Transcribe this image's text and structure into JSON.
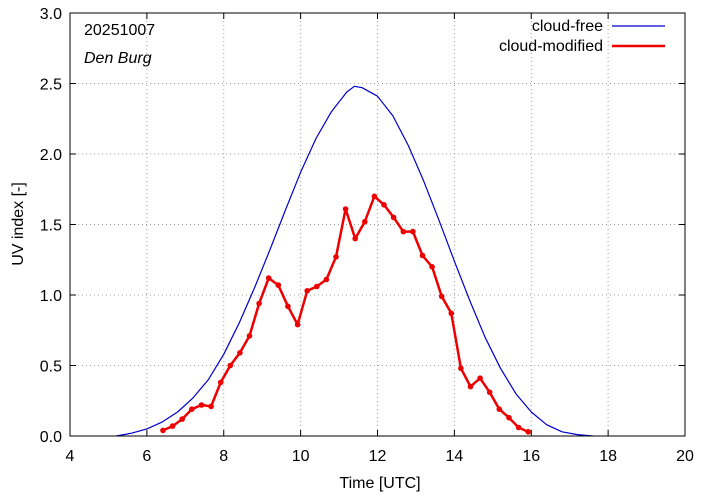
{
  "chart_data": {
    "type": "line",
    "title": "20251007",
    "subtitle": "Den Burg",
    "xlabel": "Time  [UTC]",
    "ylabel": "UV index  [-]",
    "xlim": [
      4,
      20
    ],
    "ylim": [
      0,
      3
    ],
    "xticks": [
      4,
      6,
      8,
      10,
      12,
      14,
      16,
      18,
      20
    ],
    "xtick_labels": [
      "4",
      "6",
      "8",
      "10",
      "12",
      "14",
      "16",
      "18",
      "20"
    ],
    "yticks": [
      0,
      0.5,
      1,
      1.5,
      2,
      2.5,
      3
    ],
    "ytick_labels": [
      "0.0",
      "0.5",
      "1.0",
      "1.5",
      "2.0",
      "2.5",
      "3.0"
    ],
    "legend_position": "top-right",
    "series": [
      {
        "name": "cloud-free",
        "color": "#0000cc",
        "markers": false,
        "x": [
          5.2,
          5.6,
          6.0,
          6.4,
          6.8,
          7.2,
          7.6,
          8.0,
          8.4,
          8.8,
          9.2,
          9.6,
          10.0,
          10.4,
          10.8,
          11.2,
          11.4,
          11.6,
          12.0,
          12.4,
          12.8,
          13.2,
          13.6,
          14.0,
          14.4,
          14.8,
          15.2,
          15.6,
          16.0,
          16.4,
          16.8,
          17.2,
          17.6
        ],
        "y": [
          0.0,
          0.02,
          0.05,
          0.1,
          0.17,
          0.27,
          0.4,
          0.58,
          0.8,
          1.05,
          1.32,
          1.6,
          1.87,
          2.11,
          2.3,
          2.44,
          2.48,
          2.47,
          2.41,
          2.27,
          2.06,
          1.81,
          1.53,
          1.24,
          0.96,
          0.7,
          0.48,
          0.3,
          0.17,
          0.08,
          0.03,
          0.01,
          0.0
        ]
      },
      {
        "name": "cloud-modified",
        "color": "#ee0000",
        "markers": true,
        "x": [
          6.42,
          6.67,
          6.92,
          7.17,
          7.42,
          7.67,
          7.92,
          8.17,
          8.42,
          8.67,
          8.92,
          9.17,
          9.42,
          9.67,
          9.92,
          10.17,
          10.42,
          10.67,
          10.92,
          11.17,
          11.42,
          11.67,
          11.92,
          12.17,
          12.42,
          12.67,
          12.92,
          13.17,
          13.42,
          13.67,
          13.92,
          14.17,
          14.42,
          14.67,
          14.92,
          15.17,
          15.42,
          15.67,
          15.92
        ],
        "y": [
          0.04,
          0.07,
          0.12,
          0.19,
          0.22,
          0.21,
          0.38,
          0.5,
          0.59,
          0.71,
          0.94,
          1.12,
          1.07,
          0.92,
          0.79,
          1.03,
          1.06,
          1.11,
          1.27,
          1.61,
          1.4,
          1.52,
          1.7,
          1.64,
          1.55,
          1.45,
          1.45,
          1.28,
          1.2,
          0.99,
          0.87,
          0.48,
          0.35,
          0.41,
          0.31,
          0.19,
          0.13,
          0.06,
          0.03
        ]
      }
    ]
  }
}
